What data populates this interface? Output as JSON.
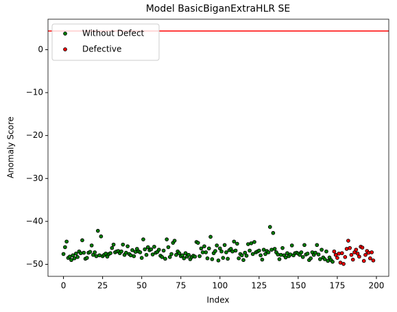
{
  "chart_data": {
    "type": "scatter",
    "title": "Model BasicBiganExtraHLR SE",
    "xlabel": "Index",
    "ylabel": "Anomaly Score",
    "xlim": [
      -9.9,
      207.9
    ],
    "ylim": [
      -52.8,
      7.1
    ],
    "xticks": [
      0,
      25,
      50,
      75,
      100,
      125,
      150,
      175,
      200
    ],
    "yticks": [
      {
        "value": -50,
        "label": "−50"
      },
      {
        "value": -40,
        "label": "−40"
      },
      {
        "value": -30,
        "label": "−30"
      },
      {
        "value": -20,
        "label": "−20"
      },
      {
        "value": -10,
        "label": "−10"
      },
      0
    ],
    "legend": "upper left",
    "hline": {
      "value": 4.35,
      "color": "#ff0000"
    },
    "series": [
      {
        "name": "Without Defect",
        "color": "#008000",
        "x": [
          0,
          1,
          2,
          3,
          4,
          5,
          6,
          7,
          8,
          9,
          10,
          11,
          12,
          13,
          14,
          15,
          16,
          17,
          18,
          19,
          20,
          21,
          22,
          23,
          24,
          25,
          26,
          27,
          28,
          29,
          30,
          31,
          32,
          33,
          34,
          35,
          36,
          37,
          38,
          39,
          40,
          41,
          42,
          43,
          44,
          45,
          46,
          47,
          48,
          49,
          50,
          51,
          52,
          53,
          54,
          55,
          56,
          57,
          58,
          59,
          60,
          61,
          62,
          63,
          64,
          65,
          66,
          67,
          68,
          69,
          70,
          71,
          72,
          73,
          74,
          75,
          76,
          77,
          78,
          79,
          80,
          81,
          82,
          83,
          84,
          85,
          86,
          87,
          88,
          89,
          90,
          91,
          92,
          93,
          94,
          95,
          96,
          97,
          98,
          99,
          100,
          101,
          102,
          103,
          104,
          105,
          106,
          107,
          108,
          109,
          110,
          111,
          112,
          113,
          114,
          115,
          116,
          117,
          118,
          119,
          120,
          121,
          122,
          123,
          124,
          125,
          126,
          127,
          128,
          129,
          130,
          131,
          132,
          133,
          134,
          135,
          136,
          137,
          138,
          139,
          140,
          141,
          142,
          143,
          144,
          145,
          146,
          147,
          148,
          149,
          150,
          151,
          152,
          153,
          154,
          155,
          156,
          157,
          158,
          159,
          160,
          161,
          162,
          163,
          164,
          165,
          166,
          167,
          168,
          169,
          170,
          171,
          172
        ],
        "values": [
          -47.6,
          -46,
          -44.7,
          -48.5,
          -48.2,
          -49,
          -47.9,
          -48.6,
          -47.5,
          -48.3,
          -47,
          -47.4,
          -44.4,
          -47.3,
          -48.7,
          -48.5,
          -47.3,
          -47.1,
          -45.6,
          -47.8,
          -47.2,
          -48.1,
          -42.2,
          -47.9,
          -43.5,
          -48.1,
          -47.8,
          -47.5,
          -48.2,
          -47.6,
          -47.4,
          -46.2,
          -45.4,
          -47.2,
          -47,
          -46.9,
          -47.4,
          -47,
          -45.4,
          -47.8,
          -47.3,
          -45.8,
          -47.6,
          -47.9,
          -46.7,
          -48.1,
          -47.1,
          -46.4,
          -47,
          -47.2,
          -48.5,
          -44.2,
          -46.5,
          -47.8,
          -46,
          -46.7,
          -46.5,
          -47.7,
          -45.9,
          -47.3,
          -47.1,
          -46.6,
          -48,
          -48.3,
          -46.8,
          -48.7,
          -44.2,
          -46,
          -48.3,
          -47.6,
          -45,
          -44.5,
          -47.8,
          -47,
          -47.4,
          -48.1,
          -47.9,
          -48.6,
          -47.4,
          -48.2,
          -47.8,
          -48.8,
          -48.3,
          -48,
          -48.2,
          -44.8,
          -45,
          -48.1,
          -46.3,
          -47.2,
          -45.8,
          -47.2,
          -48.6,
          -46.3,
          -43.6,
          -48.8,
          -47.4,
          -46.9,
          -45.6,
          -49.1,
          -46.3,
          -47,
          -48.5,
          -45.5,
          -47.2,
          -48.7,
          -46.7,
          -46.4,
          -47,
          -44.7,
          -46.8,
          -45.2,
          -48.6,
          -47.6,
          -47.9,
          -49,
          -47.3,
          -48,
          -45.3,
          -46.8,
          -45.1,
          -47.6,
          -44.8,
          -47.2,
          -47,
          -46.8,
          -47.9,
          -48.9,
          -46.6,
          -47.6,
          -46.9,
          -47.2,
          -41.3,
          -46.6,
          -42.7,
          -46.4,
          -47.2,
          -47.7,
          -48.8,
          -47.8,
          -46.2,
          -47.9,
          -48.4,
          -47.4,
          -48.1,
          -47.7,
          -45.6,
          -47.9,
          -47.4,
          -47.3,
          -47.5,
          -47.8,
          -47.2,
          -48.3,
          -45.5,
          -47.7,
          -47.5,
          -49,
          -48.6,
          -47.2,
          -47.8,
          -47.3,
          -45.5,
          -47.7,
          -48.8,
          -46.6,
          -48.4,
          -48.8,
          -47,
          -49.2,
          -48.4,
          -49,
          -49.4
        ]
      },
      {
        "name": "Defective",
        "color": "#ff0000",
        "x": [
          173,
          174,
          175,
          176,
          177,
          178,
          179,
          180,
          181,
          182,
          183,
          184,
          185,
          186,
          187,
          188,
          189,
          190,
          191,
          192,
          193,
          194,
          195,
          196,
          197,
          198
        ],
        "values": [
          -47,
          -47.8,
          -48.5,
          -47.5,
          -49.6,
          -47.4,
          -49.9,
          -48.3,
          -46.4,
          -44.5,
          -46.2,
          -47.8,
          -48.9,
          -47.2,
          -46.6,
          -47.5,
          -48.2,
          -45.9,
          -46.1,
          -49.2,
          -47.8,
          -46.9,
          -47.3,
          -48.6,
          -47.2,
          -49.1
        ]
      }
    ]
  }
}
